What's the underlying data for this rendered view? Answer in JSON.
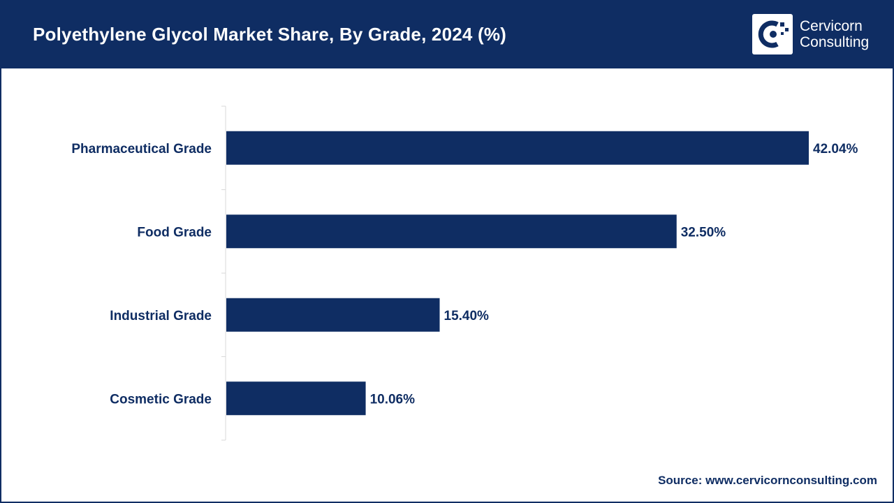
{
  "header": {
    "title": "Polyethylene Glycol Market Share, By Grade, 2024 (%)"
  },
  "logo": {
    "line1": "Cervicorn",
    "line2": "Consulting",
    "icon": "cervicorn-logo-icon"
  },
  "source": {
    "text": "Source: www.cervicornconsulting.com"
  },
  "colors": {
    "brand": "#0f2d63",
    "bar": "#0f2d63",
    "axis": "#d9d9d9",
    "label": "#0f2d63"
  },
  "chart_data": {
    "type": "bar",
    "orientation": "horizontal",
    "title": "Polyethylene Glycol Market Share, By Grade, 2024 (%)",
    "categories": [
      "Pharmaceutical Grade",
      "Food Grade",
      "Industrial Grade",
      "Cosmetic Grade"
    ],
    "values": [
      42.04,
      32.5,
      15.4,
      10.06
    ],
    "labels": [
      "42.04%",
      "32.50%",
      "15.40%",
      "10.06%"
    ],
    "xlim": [
      0,
      42.04
    ],
    "grid": false,
    "legend": "none"
  }
}
